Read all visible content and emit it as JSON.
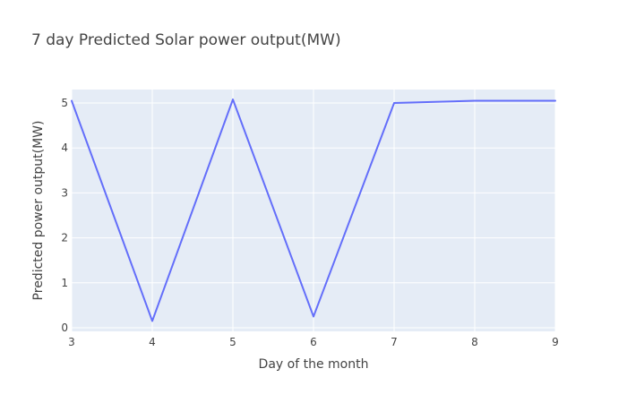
{
  "chart_data": {
    "type": "line",
    "title": "7 day Predicted Solar power output(MW)",
    "xlabel": "Day of the month",
    "ylabel": "Predicted power output(MW)",
    "xlim": [
      3,
      9
    ],
    "ylim": [
      -0.08,
      5.3
    ],
    "x_ticks": [
      3,
      4,
      5,
      6,
      7,
      8,
      9
    ],
    "y_ticks": [
      0,
      1,
      2,
      3,
      4,
      5
    ],
    "grid": true,
    "plot_background": "#e5ecf6",
    "series": [
      {
        "color": "#636efa",
        "x": [
          3,
          4,
          5,
          6,
          7,
          8,
          9
        ],
        "y": [
          5.05,
          0.15,
          5.08,
          0.25,
          5.0,
          5.05,
          5.05
        ]
      }
    ]
  }
}
